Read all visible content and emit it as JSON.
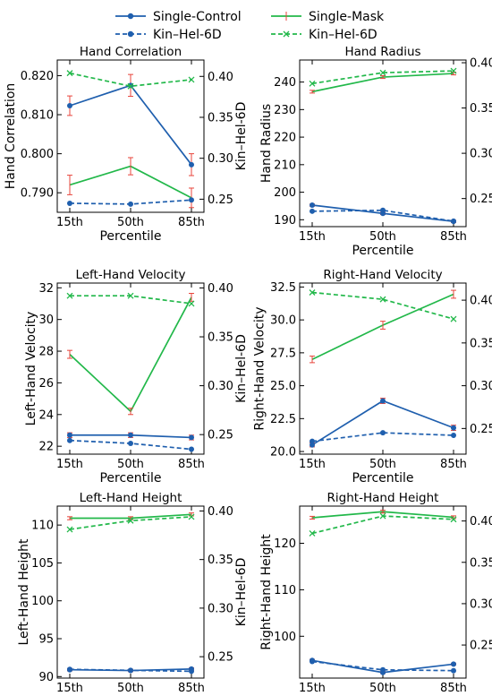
{
  "colors": {
    "control": "#1f5fae",
    "mask": "#22b84a",
    "errorbar": "#e8453c"
  },
  "legend": {
    "entries": [
      {
        "label": "Single-Control",
        "color": "#1f5fae",
        "style": "solid",
        "marker": "circle"
      },
      {
        "label": "Single-Mask",
        "color": "#22b84a",
        "style": "solid",
        "marker": "none"
      },
      {
        "label": "Kin–Hel-6D",
        "color": "#1f5fae",
        "style": "dashed",
        "marker": "circle"
      },
      {
        "label": "Kin–Hel-6D",
        "color": "#22b84a",
        "style": "dashed",
        "marker": "x"
      }
    ]
  },
  "chart_data": [
    {
      "type": "line",
      "title": "Hand Correlation",
      "xlabel": "Percentile",
      "ylabel": "Hand Correlation",
      "y2label": "Kin–Hel-6D",
      "categories": [
        "15th",
        "50th",
        "85th"
      ],
      "ylim": [
        0.785,
        0.824
      ],
      "yticks": [
        "0.790",
        "0.800",
        "0.810",
        "0.820"
      ],
      "y2lim": [
        0.234,
        0.42
      ],
      "y2ticks": [
        "0.25",
        "0.30",
        "0.35",
        "0.40"
      ],
      "series": [
        {
          "axis": "left",
          "color": "#1f5fae",
          "dash": false,
          "marker": "circle",
          "values": [
            0.8123,
            0.8175,
            0.7972
          ],
          "errors": [
            0.0025,
            0.0028,
            0.0028
          ]
        },
        {
          "axis": "left",
          "color": "#22b84a",
          "dash": false,
          "marker": "none",
          "values": [
            0.792,
            0.7968,
            0.7887
          ],
          "errors": [
            0.0025,
            0.0022,
            0.0025
          ]
        },
        {
          "axis": "right",
          "color": "#1f5fae",
          "dash": true,
          "marker": "circle",
          "values": [
            0.245,
            0.244,
            0.249
          ]
        },
        {
          "axis": "right",
          "color": "#22b84a",
          "dash": true,
          "marker": "x",
          "values": [
            0.404,
            0.388,
            0.396
          ]
        }
      ]
    },
    {
      "type": "line",
      "title": "Hand Radius",
      "xlabel": "Percentile",
      "ylabel": "Hand Radius",
      "y2label": "Kin–Hel-6D",
      "categories": [
        "15th",
        "50th",
        "85th"
      ],
      "ylim": [
        187.5,
        248
      ],
      "yticks": [
        "190",
        "200",
        "210",
        "220",
        "230",
        "240"
      ],
      "y2lim": [
        0.219,
        0.403
      ],
      "y2ticks": [
        "0.25",
        "0.30",
        "0.35",
        "0.40"
      ],
      "series": [
        {
          "axis": "left",
          "color": "#1f5fae",
          "dash": false,
          "marker": "circle",
          "values": [
            195.3,
            192.3,
            189.4
          ],
          "errors": [
            0.4,
            0.4,
            0.4
          ]
        },
        {
          "axis": "left",
          "color": "#22b84a",
          "dash": false,
          "marker": "none",
          "values": [
            236.5,
            241.8,
            243.1
          ],
          "errors": [
            0.5,
            0.5,
            0.5
          ]
        },
        {
          "axis": "right",
          "color": "#1f5fae",
          "dash": true,
          "marker": "circle",
          "values": [
            0.236,
            0.237,
            0.225
          ]
        },
        {
          "axis": "right",
          "color": "#22b84a",
          "dash": true,
          "marker": "x",
          "values": [
            0.377,
            0.389,
            0.391
          ]
        }
      ]
    },
    {
      "type": "line",
      "title": "Left-Hand Velocity",
      "xlabel": "Percentile",
      "ylabel": "Left-Hand Velocity",
      "y2label": "Kin–Hel-6D",
      "categories": [
        "15th",
        "50th",
        "85th"
      ],
      "ylim": [
        21.5,
        32.3
      ],
      "yticks": [
        "22",
        "24",
        "26",
        "28",
        "30",
        "32"
      ],
      "y2lim": [
        0.23,
        0.405
      ],
      "y2ticks": [
        "0.25",
        "0.30",
        "0.35",
        "0.40"
      ],
      "series": [
        {
          "axis": "left",
          "color": "#1f5fae",
          "dash": false,
          "marker": "circle",
          "values": [
            22.7,
            22.7,
            22.55
          ],
          "errors": [
            0.15,
            0.15,
            0.15
          ]
        },
        {
          "axis": "left",
          "color": "#22b84a",
          "dash": false,
          "marker": "none",
          "values": [
            27.8,
            24.2,
            31.4
          ],
          "errors": [
            0.25,
            0.2,
            0.25
          ]
        },
        {
          "axis": "right",
          "color": "#1f5fae",
          "dash": true,
          "marker": "circle",
          "values": [
            0.244,
            0.241,
            0.235
          ]
        },
        {
          "axis": "right",
          "color": "#22b84a",
          "dash": true,
          "marker": "x",
          "values": [
            0.392,
            0.392,
            0.384
          ]
        }
      ]
    },
    {
      "type": "line",
      "title": "Right-Hand Velocity",
      "xlabel": "Percentile",
      "ylabel": "Right-Hand Velocity",
      "y2label": "Kin–Hel-6D",
      "categories": [
        "15th",
        "50th",
        "85th"
      ],
      "ylim": [
        19.8,
        32.8
      ],
      "yticks": [
        "20.0",
        "22.5",
        "25.0",
        "27.5",
        "30.0",
        "32.5"
      ],
      "y2lim": [
        0.22,
        0.42
      ],
      "y2ticks": [
        "0.25",
        "0.30",
        "0.35",
        "0.40"
      ],
      "series": [
        {
          "axis": "left",
          "color": "#1f5fae",
          "dash": false,
          "marker": "circle",
          "values": [
            20.5,
            23.85,
            21.8
          ],
          "errors": [
            0.15,
            0.2,
            0.2
          ]
        },
        {
          "axis": "left",
          "color": "#22b84a",
          "dash": false,
          "marker": "none",
          "values": [
            27.0,
            29.6,
            31.95
          ],
          "errors": [
            0.25,
            0.3,
            0.3
          ]
        },
        {
          "axis": "right",
          "color": "#1f5fae",
          "dash": true,
          "marker": "circle",
          "values": [
            0.235,
            0.245,
            0.242
          ]
        },
        {
          "axis": "right",
          "color": "#22b84a",
          "dash": true,
          "marker": "x",
          "values": [
            0.409,
            0.401,
            0.378
          ]
        }
      ]
    },
    {
      "type": "line",
      "title": "Left-Hand Height",
      "xlabel": "Percentile",
      "ylabel": "Left-Hand Height",
      "y2label": "Kin–Hel-6D",
      "categories": [
        "15th",
        "50th",
        "85th"
      ],
      "ylim": [
        89.8,
        112.5
      ],
      "yticks": [
        "90",
        "95",
        "100",
        "105",
        "110"
      ],
      "y2lim": [
        0.228,
        0.405
      ],
      "y2ticks": [
        "0.25",
        "0.30",
        "0.35",
        "0.40"
      ],
      "series": [
        {
          "axis": "left",
          "color": "#1f5fae",
          "dash": false,
          "marker": "circle",
          "values": [
            90.9,
            90.8,
            91.0
          ],
          "errors": [
            0.15,
            0.15,
            0.15
          ]
        },
        {
          "axis": "left",
          "color": "#22b84a",
          "dash": false,
          "marker": "none",
          "values": [
            110.9,
            110.9,
            111.4
          ],
          "errors": [
            0.2,
            0.2,
            0.2
          ]
        },
        {
          "axis": "right",
          "color": "#1f5fae",
          "dash": true,
          "marker": "circle",
          "values": [
            0.237,
            0.236,
            0.235
          ]
        },
        {
          "axis": "right",
          "color": "#22b84a",
          "dash": true,
          "marker": "x",
          "values": [
            0.381,
            0.39,
            0.394
          ]
        }
      ]
    },
    {
      "type": "line",
      "title": "Right-Hand Height",
      "xlabel": "Percentile",
      "ylabel": "Right-Hand Height",
      "y2label": "Kin–Hel-6D",
      "categories": [
        "15th",
        "50th",
        "85th"
      ],
      "ylim": [
        91.0,
        128.0
      ],
      "yticks": [
        "100",
        "110",
        "120"
      ],
      "y2lim": [
        0.21,
        0.418
      ],
      "y2ticks": [
        "0.25",
        "0.30",
        "0.35",
        "0.40"
      ],
      "series": [
        {
          "axis": "left",
          "color": "#1f5fae",
          "dash": false,
          "marker": "circle",
          "values": [
            94.8,
            92.2,
            94.0
          ],
          "errors": [
            0.2,
            0.2,
            0.2
          ]
        },
        {
          "axis": "left",
          "color": "#22b84a",
          "dash": false,
          "marker": "none",
          "values": [
            125.5,
            126.8,
            125.6
          ],
          "errors": [
            0.3,
            0.3,
            0.3
          ]
        },
        {
          "axis": "right",
          "color": "#1f5fae",
          "dash": true,
          "marker": "circle",
          "values": [
            0.23,
            0.22,
            0.219
          ]
        },
        {
          "axis": "right",
          "color": "#22b84a",
          "dash": true,
          "marker": "x",
          "values": [
            0.385,
            0.406,
            0.402
          ]
        }
      ]
    }
  ]
}
